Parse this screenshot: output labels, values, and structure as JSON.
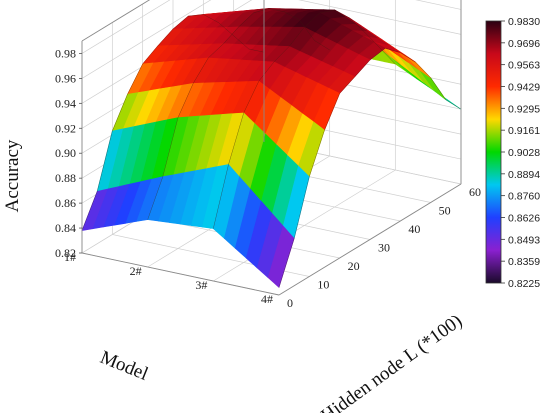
{
  "chart_data": {
    "type": "surface",
    "zlabel": "Accuracy",
    "xlabel": "Model",
    "ylabel": "Hidden node L (*100)",
    "model_categories": [
      "1#",
      "2#",
      "3#",
      "4#"
    ],
    "hidden_nodes": [
      0,
      5,
      10,
      15,
      20,
      25,
      30,
      35,
      40,
      45,
      50,
      55,
      60
    ],
    "hidden_ticks": [
      "0",
      "10",
      "20",
      "30",
      "40",
      "50",
      "60"
    ],
    "z_ticks": [
      "0.82",
      "0.84",
      "0.86",
      "0.88",
      "0.90",
      "0.92",
      "0.94",
      "0.96",
      "0.98"
    ],
    "zlim": [
      0.82,
      0.99
    ],
    "surface": [
      [
        0.838,
        0.862,
        0.903,
        0.925,
        0.942,
        0.949,
        0.955,
        0.958,
        0.952,
        0.938,
        0.92,
        0.902,
        0.892
      ],
      [
        0.858,
        0.885,
        0.925,
        0.945,
        0.958,
        0.962,
        0.968,
        0.972,
        0.968,
        0.958,
        0.944,
        0.92,
        0.905
      ],
      [
        0.862,
        0.906,
        0.94,
        0.958,
        0.966,
        0.971,
        0.979,
        0.983,
        0.978,
        0.964,
        0.945,
        0.925,
        0.905
      ],
      [
        0.826,
        0.858,
        0.9,
        0.93,
        0.952,
        0.958,
        0.964,
        0.966,
        0.955,
        0.94,
        0.92,
        0.895,
        0.88
      ]
    ],
    "colorbar_ticks": [
      "0.9830",
      "0.9696",
      "0.9563",
      "0.9429",
      "0.9295",
      "0.9161",
      "0.9028",
      "0.8894",
      "0.8760",
      "0.8626",
      "0.8493",
      "0.8359",
      "0.8225"
    ],
    "colorscale": [
      "#2b0012",
      "#c8081a",
      "#ff2a00",
      "#ffd800",
      "#00d800",
      "#00c8f0",
      "#2040ff",
      "#8a20d0",
      "#1a0a2a"
    ],
    "grid": true,
    "colorbar_placement": "right"
  }
}
